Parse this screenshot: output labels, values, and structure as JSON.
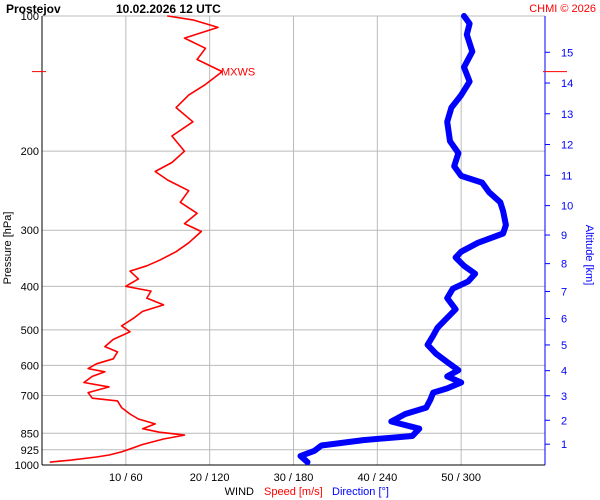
{
  "header": {
    "station": "Prostejov",
    "datetime": "10.02.2026 12 UTC",
    "credit": "CHMI © 2026"
  },
  "colors": {
    "speed": "#ff0000",
    "direction": "#0000ff",
    "grid": "#bbbbbb",
    "altitude_axis": "#0000ff"
  },
  "chart_data": {
    "type": "line",
    "xlabel_prefix": "WIND",
    "xlabel_speed": "Speed [m/s]",
    "xlabel_direction": "Direction [°]",
    "ylabel": "Pressure [hPa]",
    "y2label": "Altitude [km]",
    "y_scale": "log",
    "ylim": [
      1000,
      100
    ],
    "pressure_ticks": [
      "100",
      "200",
      "300",
      "400",
      "500",
      "600",
      "700",
      "850",
      "925",
      "1000"
    ],
    "altitude_ticks": [
      "1",
      "2",
      "3",
      "4",
      "5",
      "6",
      "7",
      "8",
      "9",
      "10",
      "11",
      "12",
      "13",
      "14",
      "15"
    ],
    "x_ticks": [
      "10 / 60",
      "20 / 120",
      "30 / 180",
      "40 / 240",
      "50 / 300"
    ],
    "x_tick_values_speed": [
      10,
      20,
      30,
      40,
      50
    ],
    "x_tick_values_direction": [
      60,
      120,
      180,
      240,
      300
    ],
    "speed_xlim": [
      0,
      60
    ],
    "direction_xlim": [
      0,
      360
    ],
    "annotation": {
      "label": "MXWS",
      "pressure": 133
    },
    "series": [
      {
        "name": "Speed [m/s]",
        "axis": "speed",
        "points": [
          [
            1.0,
            985
          ],
          [
            3.5,
            975
          ],
          [
            6.5,
            960
          ],
          [
            8.0,
            950
          ],
          [
            9.5,
            935
          ],
          [
            12.0,
            900
          ],
          [
            14.5,
            875
          ],
          [
            17.0,
            858
          ],
          [
            14.0,
            845
          ],
          [
            12.0,
            830
          ],
          [
            13.5,
            810
          ],
          [
            11.5,
            790
          ],
          [
            10.5,
            770
          ],
          [
            9.5,
            745
          ],
          [
            9.0,
            720
          ],
          [
            6.0,
            710
          ],
          [
            5.5,
            690
          ],
          [
            8.0,
            670
          ],
          [
            5.0,
            655
          ],
          [
            6.0,
            635
          ],
          [
            7.5,
            620
          ],
          [
            5.5,
            610
          ],
          [
            6.5,
            595
          ],
          [
            8.5,
            580
          ],
          [
            9.0,
            560
          ],
          [
            7.5,
            545
          ],
          [
            8.5,
            525
          ],
          [
            10.5,
            505
          ],
          [
            9.5,
            490
          ],
          [
            11.0,
            470
          ],
          [
            12.0,
            455
          ],
          [
            14.5,
            440
          ],
          [
            12.5,
            425
          ],
          [
            13.0,
            410
          ],
          [
            10.0,
            400
          ],
          [
            11.5,
            385
          ],
          [
            10.5,
            370
          ],
          [
            12.5,
            360
          ],
          [
            14.0,
            350
          ],
          [
            16.0,
            335
          ],
          [
            17.5,
            320
          ],
          [
            19.0,
            302
          ],
          [
            17.0,
            290
          ],
          [
            18.5,
            275
          ],
          [
            16.5,
            260
          ],
          [
            17.5,
            245
          ],
          [
            15.0,
            232
          ],
          [
            13.5,
            222
          ],
          [
            15.5,
            212
          ],
          [
            17.0,
            200
          ],
          [
            15.5,
            185
          ],
          [
            18.0,
            172
          ],
          [
            16.0,
            160
          ],
          [
            17.5,
            150
          ],
          [
            19.5,
            142
          ],
          [
            21.5,
            133
          ],
          [
            18.5,
            125
          ],
          [
            19.5,
            118
          ],
          [
            17.0,
            112
          ],
          [
            21.0,
            106
          ],
          [
            18.0,
            102
          ],
          [
            15.0,
            100
          ]
        ]
      },
      {
        "name": "Direction [°]",
        "axis": "direction",
        "points": [
          [
            190,
            985
          ],
          [
            185,
            955
          ],
          [
            195,
            930
          ],
          [
            200,
            905
          ],
          [
            230,
            880
          ],
          [
            265,
            862
          ],
          [
            270,
            830
          ],
          [
            250,
            800
          ],
          [
            260,
            770
          ],
          [
            275,
            745
          ],
          [
            278,
            715
          ],
          [
            280,
            690
          ],
          [
            290,
            675
          ],
          [
            300,
            655
          ],
          [
            290,
            635
          ],
          [
            298,
            615
          ],
          [
            290,
            590
          ],
          [
            282,
            565
          ],
          [
            276,
            540
          ],
          [
            280,
            515
          ],
          [
            283,
            495
          ],
          [
            290,
            470
          ],
          [
            296,
            450
          ],
          [
            290,
            425
          ],
          [
            294,
            405
          ],
          [
            305,
            390
          ],
          [
            310,
            375
          ],
          [
            302,
            360
          ],
          [
            296,
            345
          ],
          [
            300,
            335
          ],
          [
            312,
            320
          ],
          [
            330,
            305
          ],
          [
            332,
            292
          ],
          [
            330,
            272
          ],
          [
            328,
            260
          ],
          [
            320,
            247
          ],
          [
            315,
            235
          ],
          [
            300,
            227
          ],
          [
            295,
            216
          ],
          [
            298,
            202
          ],
          [
            292,
            190
          ],
          [
            290,
            172
          ],
          [
            293,
            160
          ],
          [
            300,
            150
          ],
          [
            306,
            140
          ],
          [
            302,
            130
          ],
          [
            308,
            120
          ],
          [
            304,
            110
          ],
          [
            306,
            104
          ],
          [
            302,
            100
          ]
        ]
      }
    ]
  }
}
